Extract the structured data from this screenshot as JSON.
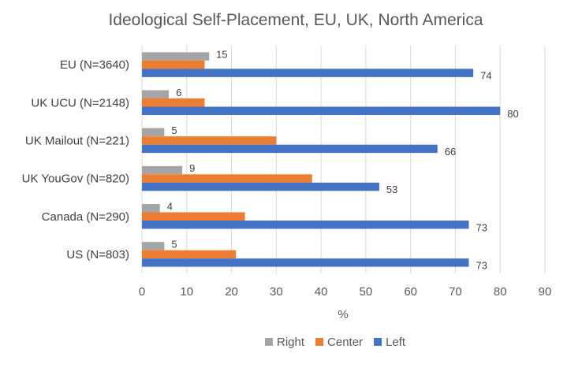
{
  "chart_data": {
    "type": "bar",
    "orientation": "horizontal",
    "title": "Ideological Self-Placement, EU, UK, North America",
    "xlabel": "%",
    "ylabel": "",
    "categories": [
      "EU (N=3640)",
      "UK UCU (N=2148)",
      "UK Mailout (N=221)",
      "UK YouGov (N=820)",
      "Canada (N=290)",
      "US (N=803)"
    ],
    "series": [
      {
        "name": "Right",
        "color": "#a5a5a5",
        "values": [
          15,
          6,
          5,
          9,
          4,
          5
        ]
      },
      {
        "name": "Center",
        "color": "#ed7d31",
        "values": [
          14,
          14,
          30,
          38,
          23,
          21
        ]
      },
      {
        "name": "Left",
        "color": "#4472c4",
        "values": [
          74,
          80,
          66,
          53,
          73,
          73
        ]
      }
    ],
    "data_labels": {
      "Right": [
        15,
        6,
        5,
        9,
        4,
        5
      ],
      "Center": [],
      "Left": [
        74,
        80,
        66,
        53,
        73,
        73
      ]
    },
    "xlim": [
      0,
      90
    ],
    "xticks": [
      0,
      10,
      20,
      30,
      40,
      50,
      60,
      70,
      80,
      90
    ],
    "grid": true,
    "legend_position": "bottom"
  }
}
